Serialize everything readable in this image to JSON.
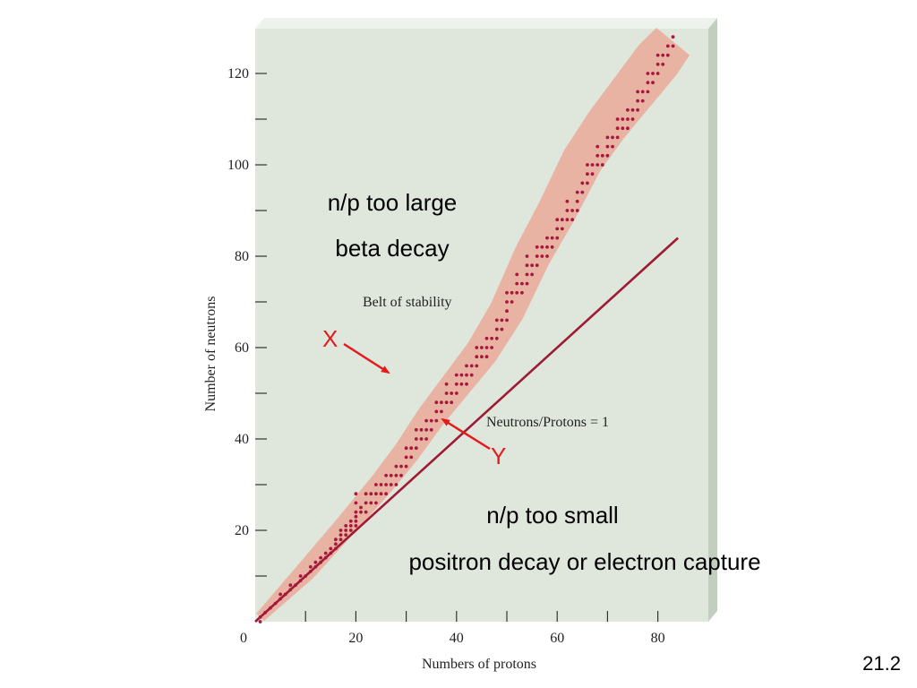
{
  "slide": {
    "number": "21.2",
    "notes": {
      "large_line1": "n/p too large",
      "large_line2": "beta decay",
      "small_line1": "n/p too small",
      "small_line2": "positron decay or electron capture"
    },
    "markers": {
      "x": "X",
      "y": "Y"
    },
    "colors": {
      "annotation_red": "#e31b1b",
      "dot": "#a8183c",
      "belt": "#e8b3a3",
      "plot_bg": "#dfe6dc",
      "line": "#9e1b35"
    }
  },
  "chart_data": {
    "type": "scatter",
    "xlabel": "Numbers of protons",
    "ylabel": "Number of neutrons",
    "xlim": [
      0,
      90
    ],
    "ylim": [
      0,
      130
    ],
    "x_ticks": [
      0,
      20,
      40,
      60,
      80
    ],
    "x_tick_labels": [
      "0",
      "20",
      "40",
      "60",
      "80"
    ],
    "y_ticks": [
      20,
      40,
      60,
      80,
      100,
      120
    ],
    "y_tick_labels": [
      "20",
      "40",
      "60",
      "80",
      "100",
      "120"
    ],
    "grid": false,
    "annotations": {
      "belt_label": "Belt of stability",
      "line_label": "Neutrons/Protons = 1"
    },
    "reference_line": {
      "name": "Neutrons/Protons = 1",
      "x": [
        0,
        84
      ],
      "y": [
        0,
        84
      ]
    },
    "belt": {
      "name": "Belt of stability",
      "center_x": [
        1,
        10,
        18,
        25,
        30,
        35,
        40,
        45,
        50,
        55,
        60,
        65,
        70,
        75,
        80,
        83
      ],
      "center_y": [
        1,
        11,
        21,
        30,
        37,
        45,
        52,
        59,
        68,
        80,
        90,
        101,
        109,
        116,
        123,
        127
      ]
    },
    "nuclides": [
      [
        1,
        0
      ],
      [
        1,
        1
      ],
      [
        2,
        2
      ],
      [
        3,
        3
      ],
      [
        4,
        4
      ],
      [
        5,
        5
      ],
      [
        5,
        6
      ],
      [
        6,
        6
      ],
      [
        7,
        7
      ],
      [
        7,
        8
      ],
      [
        8,
        8
      ],
      [
        9,
        9
      ],
      [
        9,
        10
      ],
      [
        10,
        10
      ],
      [
        11,
        11
      ],
      [
        11,
        12
      ],
      [
        12,
        12
      ],
      [
        12,
        13
      ],
      [
        13,
        13
      ],
      [
        13,
        14
      ],
      [
        14,
        14
      ],
      [
        14,
        15
      ],
      [
        15,
        15
      ],
      [
        15,
        16
      ],
      [
        16,
        16
      ],
      [
        16,
        17
      ],
      [
        16,
        18
      ],
      [
        17,
        18
      ],
      [
        17,
        19
      ],
      [
        17,
        20
      ],
      [
        18,
        19
      ],
      [
        18,
        20
      ],
      [
        18,
        21
      ],
      [
        19,
        20
      ],
      [
        19,
        21
      ],
      [
        19,
        22
      ],
      [
        20,
        21
      ],
      [
        20,
        22
      ],
      [
        20,
        23
      ],
      [
        20,
        24
      ],
      [
        20,
        26
      ],
      [
        20,
        28
      ],
      [
        21,
        24
      ],
      [
        21,
        25
      ],
      [
        22,
        24
      ],
      [
        22,
        26
      ],
      [
        22,
        28
      ],
      [
        23,
        26
      ],
      [
        23,
        28
      ],
      [
        24,
        26
      ],
      [
        24,
        28
      ],
      [
        24,
        30
      ],
      [
        25,
        28
      ],
      [
        25,
        30
      ],
      [
        26,
        28
      ],
      [
        26,
        30
      ],
      [
        26,
        32
      ],
      [
        27,
        30
      ],
      [
        27,
        32
      ],
      [
        28,
        30
      ],
      [
        28,
        32
      ],
      [
        28,
        34
      ],
      [
        29,
        32
      ],
      [
        29,
        34
      ],
      [
        30,
        34
      ],
      [
        30,
        36
      ],
      [
        30,
        38
      ],
      [
        31,
        36
      ],
      [
        31,
        38
      ],
      [
        32,
        38
      ],
      [
        32,
        40
      ],
      [
        32,
        42
      ],
      [
        33,
        40
      ],
      [
        33,
        42
      ],
      [
        34,
        40
      ],
      [
        34,
        42
      ],
      [
        34,
        44
      ],
      [
        35,
        42
      ],
      [
        35,
        44
      ],
      [
        36,
        44
      ],
      [
        36,
        46
      ],
      [
        36,
        48
      ],
      [
        37,
        46
      ],
      [
        37,
        48
      ],
      [
        38,
        48
      ],
      [
        38,
        50
      ],
      [
        38,
        52
      ],
      [
        39,
        48
      ],
      [
        39,
        50
      ],
      [
        40,
        50
      ],
      [
        40,
        52
      ],
      [
        40,
        54
      ],
      [
        41,
        52
      ],
      [
        41,
        54
      ],
      [
        42,
        52
      ],
      [
        42,
        54
      ],
      [
        42,
        56
      ],
      [
        43,
        54
      ],
      [
        43,
        56
      ],
      [
        44,
        56
      ],
      [
        44,
        58
      ],
      [
        44,
        60
      ],
      [
        45,
        58
      ],
      [
        45,
        60
      ],
      [
        46,
        58
      ],
      [
        46,
        60
      ],
      [
        46,
        62
      ],
      [
        47,
        60
      ],
      [
        47,
        62
      ],
      [
        48,
        62
      ],
      [
        48,
        64
      ],
      [
        48,
        66
      ],
      [
        49,
        64
      ],
      [
        49,
        66
      ],
      [
        50,
        66
      ],
      [
        50,
        68
      ],
      [
        50,
        70
      ],
      [
        50,
        72
      ],
      [
        51,
        70
      ],
      [
        51,
        72
      ],
      [
        52,
        72
      ],
      [
        52,
        74
      ],
      [
        52,
        76
      ],
      [
        53,
        72
      ],
      [
        53,
        74
      ],
      [
        54,
        74
      ],
      [
        54,
        76
      ],
      [
        54,
        78
      ],
      [
        54,
        80
      ],
      [
        55,
        76
      ],
      [
        55,
        78
      ],
      [
        56,
        78
      ],
      [
        56,
        80
      ],
      [
        56,
        82
      ],
      [
        57,
        80
      ],
      [
        57,
        82
      ],
      [
        58,
        80
      ],
      [
        58,
        82
      ],
      [
        58,
        84
      ],
      [
        59,
        82
      ],
      [
        59,
        84
      ],
      [
        60,
        84
      ],
      [
        60,
        86
      ],
      [
        60,
        88
      ],
      [
        61,
        86
      ],
      [
        61,
        88
      ],
      [
        62,
        88
      ],
      [
        62,
        90
      ],
      [
        62,
        92
      ],
      [
        63,
        88
      ],
      [
        63,
        90
      ],
      [
        64,
        90
      ],
      [
        64,
        92
      ],
      [
        64,
        94
      ],
      [
        65,
        94
      ],
      [
        65,
        96
      ],
      [
        66,
        96
      ],
      [
        66,
        98
      ],
      [
        66,
        100
      ],
      [
        67,
        98
      ],
      [
        67,
        100
      ],
      [
        68,
        100
      ],
      [
        68,
        102
      ],
      [
        68,
        104
      ],
      [
        69,
        100
      ],
      [
        69,
        102
      ],
      [
        70,
        102
      ],
      [
        70,
        104
      ],
      [
        70,
        106
      ],
      [
        71,
        104
      ],
      [
        71,
        106
      ],
      [
        72,
        106
      ],
      [
        72,
        108
      ],
      [
        72,
        110
      ],
      [
        73,
        108
      ],
      [
        73,
        110
      ],
      [
        74,
        108
      ],
      [
        74,
        110
      ],
      [
        74,
        112
      ],
      [
        75,
        110
      ],
      [
        75,
        112
      ],
      [
        76,
        112
      ],
      [
        76,
        114
      ],
      [
        76,
        116
      ],
      [
        77,
        114
      ],
      [
        77,
        116
      ],
      [
        78,
        116
      ],
      [
        78,
        118
      ],
      [
        78,
        120
      ],
      [
        79,
        118
      ],
      [
        79,
        120
      ],
      [
        80,
        120
      ],
      [
        80,
        122
      ],
      [
        80,
        124
      ],
      [
        81,
        122
      ],
      [
        81,
        124
      ],
      [
        82,
        124
      ],
      [
        82,
        126
      ],
      [
        83,
        126
      ],
      [
        83,
        128
      ]
    ]
  }
}
